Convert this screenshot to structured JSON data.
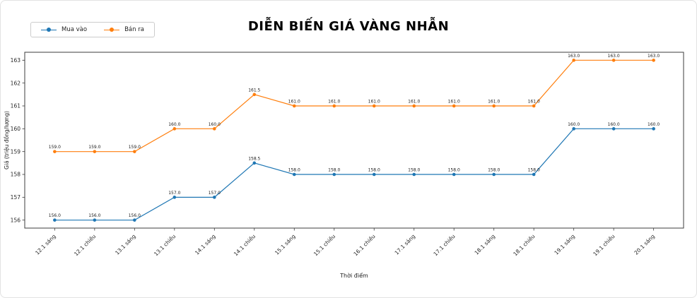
{
  "chart_data": {
    "type": "line",
    "title": "DIỄN BIẾN GIÁ VÀNG NHẪN",
    "xlabel": "Thời điểm",
    "ylabel": "Giá (triệu đồng/lượng)",
    "categories": [
      "12.1 sáng",
      "12.1 chiều",
      "13.1 sáng",
      "13.1 chiều",
      "14.1 sáng",
      "14.1 chiều",
      "15.1 sáng",
      "15.1 chiều",
      "16.1 chiều",
      "17.1 sáng",
      "17.1 chiều",
      "18.1 sáng",
      "18.1 chiều",
      "19.1 sáng",
      "19.1 chiều",
      "20.1 sáng"
    ],
    "series": [
      {
        "name": "Mua vào",
        "color": "#1f77b4",
        "values": [
          156.0,
          156.0,
          156.0,
          157.0,
          157.0,
          158.5,
          158.0,
          158.0,
          158.0,
          158.0,
          158.0,
          158.0,
          158.0,
          160.0,
          160.0,
          160.0
        ]
      },
      {
        "name": "Bán ra",
        "color": "#ff7f0e",
        "values": [
          159.0,
          159.0,
          159.0,
          160.0,
          160.0,
          161.5,
          161.0,
          161.0,
          161.0,
          161.0,
          161.0,
          161.0,
          161.0,
          163.0,
          163.0,
          163.0
        ]
      }
    ],
    "yticks": [
      156,
      157,
      158,
      159,
      160,
      161,
      162,
      163
    ],
    "ylim": [
      155.65,
      163.35
    ],
    "grid": false,
    "data_labels": true,
    "legend_position": "upper-left"
  }
}
